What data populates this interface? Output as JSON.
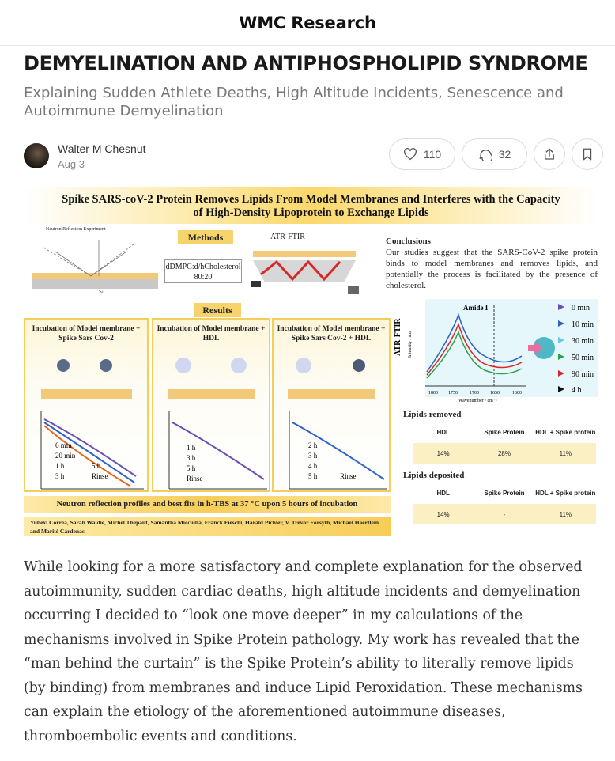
{
  "publication": {
    "name": "WMC Research"
  },
  "article": {
    "title": "DEMYELINATION AND ANTIPHOSPHOLIPID SYNDROME",
    "subtitle": "Explaining Sudden Athlete Deaths, High Altitude Incidents, Senescence and Autoimmune Demyelination",
    "author": "Walter M Chesnut",
    "date": "Aug 3",
    "likes": "110",
    "comments": "32",
    "body": "While looking for a more satisfactory and complete explanation for the observed autoimmunity, sudden cardiac deaths, high altitude incidents and demyelination occurring I decided to “look one move deeper” in my calculations of the mechanisms involved in Spike Protein pathology. My work has revealed that the “man behind the curtain” is the Spike Protein’s ability to literally remove lipids (by binding) from membranes and induce Lipid Peroxidation. These mechanisms can explain the etiology of the aforementioned autoimmune diseases, thromboembolic events and conditions."
  },
  "icons": {
    "like": "heart-icon",
    "comment": "speech-bubble-icon",
    "share": "share-icon",
    "bookmark": "bookmark-icon"
  },
  "figure": {
    "title_line1": "Spike SARS-coV-2 Protein Removes Lipids From Model Membranes and Interferes with the Capacity",
    "title_line2": "of High-Density Lipoprotein to Exchange Lipids",
    "methods_label": "Methods",
    "results_label": "Results",
    "neutron_experiment_label": "Neutron Reflection Experiment",
    "atr_label": "ATR-FTIR",
    "ratio_line1": "dDMPC:d/hCholesterol",
    "ratio_line2": "80:20",
    "conclusions_title": "Conclusions",
    "conclusions_text": "Our studies suggest that the SARS-CoV-2 spike protein binds to model membranes and removes lipids, and potentially the process is facilitated by the presence of cholesterol.",
    "panels": [
      {
        "title": "Incubation of Model membrane + Spike Sars Cov-2",
        "legend": [
          "6 min",
          "20 min",
          "1 h",
          "5 h",
          "3 h",
          "Rinse"
        ]
      },
      {
        "title": "Incubation of Model membrane + HDL",
        "legend": [
          "1 h",
          "3 h",
          "5 h",
          "Rinse"
        ]
      },
      {
        "title": "Incubation of Model membrane + Spike Sars Cov-2 + HDL",
        "legend": [
          "2 h",
          "3 h",
          "4 h",
          "5 h",
          "Rinse"
        ]
      }
    ],
    "neutron_caption": "Neutron reflection profiles and best fits in h-TBS at 37 °C upon 5 hours of incubation",
    "authors": "Yubexi Correa, Sarah Waldie, Michel Thépaut, Samantha Micciulla, Franck Fieschi, Harald Pichler, V. Trevor Forsyth, Michael Haertlein and Marité Cárdenas",
    "atr_chart": {
      "ylabel": "ATR-FTIR",
      "yunit": "Intensity / a.u.",
      "xlabel": "Wavenumber / cm⁻¹",
      "peak_label": "Amide I",
      "xticks": [
        "1800",
        "1750",
        "1700",
        "1650",
        "1600"
      ],
      "legend": [
        "0 min",
        "10 min",
        "30 min",
        "50 min",
        "90 min",
        "4 h"
      ]
    },
    "lipids_removed": {
      "title": "Lipids removed",
      "headers": [
        "HDL",
        "Spike Protein",
        "HDL + Spike protein"
      ],
      "values": [
        "14%",
        "28%",
        "11%"
      ]
    },
    "lipids_deposited": {
      "title": "Lipids deposited",
      "headers": [
        "HDL",
        "Spike Protein",
        "HDL + Spike protein"
      ],
      "values": [
        "14%",
        "-",
        "11%"
      ]
    },
    "colors": {
      "accent": "#f7cd57",
      "header": "#fbd86a"
    }
  }
}
